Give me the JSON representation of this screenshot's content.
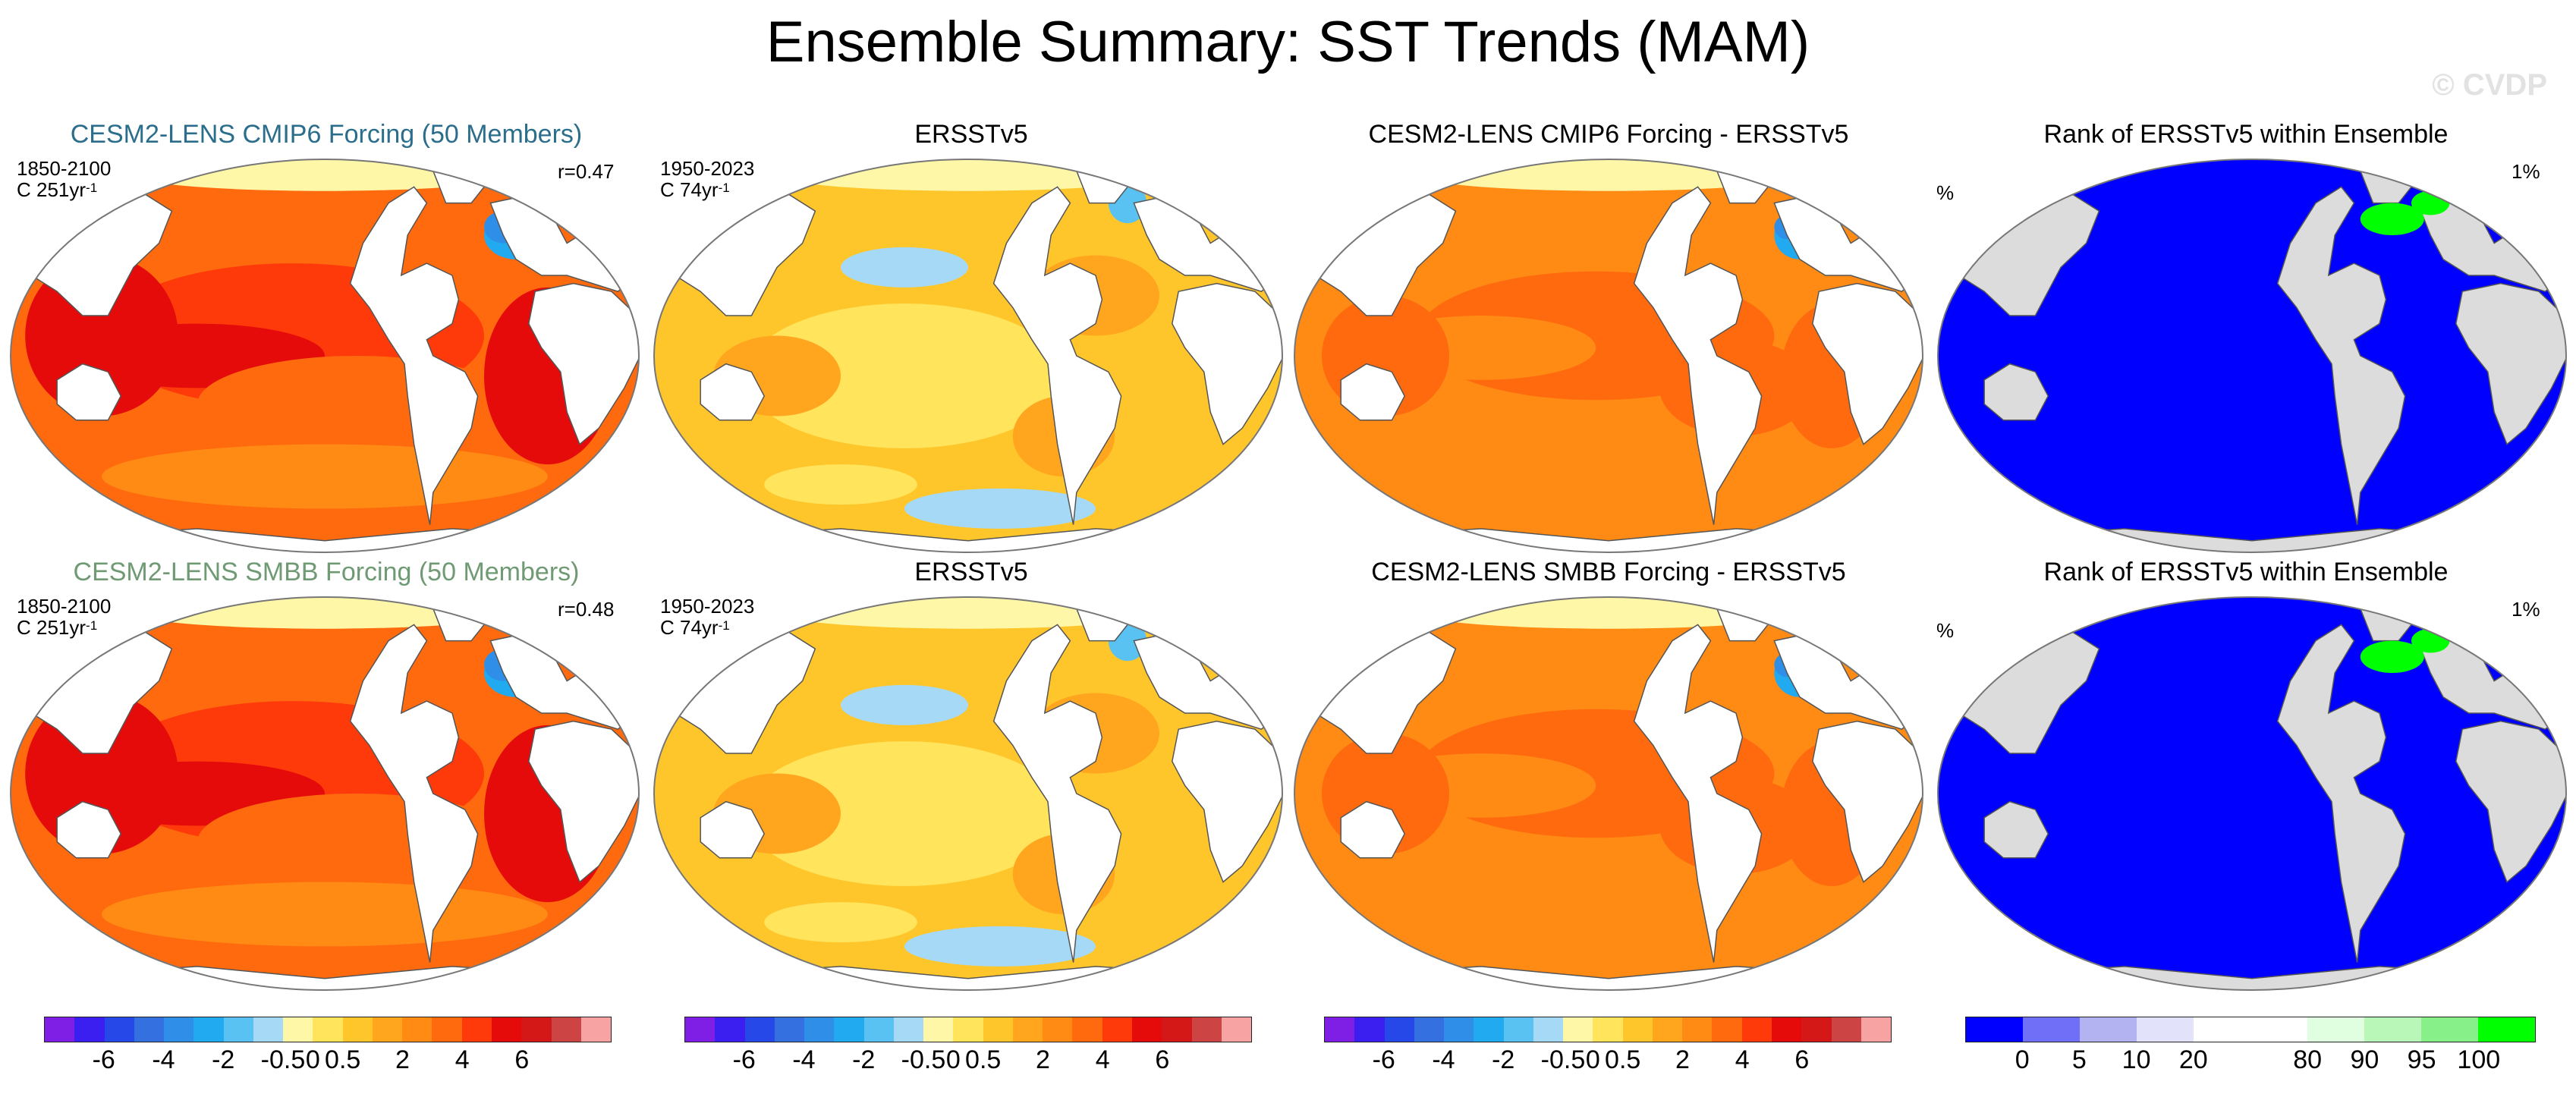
{
  "header": {
    "title": "Ensemble Summary: SST Trends (MAM)",
    "watermark": "© CVDP"
  },
  "rows": [
    {
      "panels": [
        {
          "title": "CESM2-LENS CMIP6 Forcing (50 Members)",
          "title_color": "#2b6e8c",
          "label_left_1": "1850-2100",
          "label_left_2a": "C 251yr",
          "label_left_2b": "-1",
          "label_right": "r=0.47"
        },
        {
          "title": "ERSSTv5",
          "label_left_1": "1950-2023",
          "label_left_2a": "C 74yr",
          "label_left_2b": "-1"
        },
        {
          "title": "CESM2-LENS CMIP6 Forcing - ERSSTv5"
        },
        {
          "title": "Rank of ERSSTv5 within Ensemble",
          "label_left_1": "%",
          "label_right": "1%"
        }
      ]
    },
    {
      "panels": [
        {
          "title": "CESM2-LENS SMBB Forcing (50 Members)",
          "title_color": "#6f9a73",
          "label_left_1": "1850-2100",
          "label_left_2a": "C 251yr",
          "label_left_2b": "-1",
          "label_right": "r=0.48"
        },
        {
          "title": "ERSSTv5",
          "label_left_1": "1950-2023",
          "label_left_2a": "C 74yr",
          "label_left_2b": "-1"
        },
        {
          "title": "CESM2-LENS SMBB Forcing - ERSSTv5"
        },
        {
          "title": "Rank of ERSSTv5 within Ensemble",
          "label_left_1": "%",
          "label_right": "1%"
        }
      ]
    }
  ],
  "chart_data": {
    "type": "heatmap",
    "description_title": "Ensemble Summary: SST Trends (MAM)",
    "trend_colorbar": {
      "colors": [
        "#7f1fe6",
        "#3a1ff0",
        "#2748e8",
        "#3470e0",
        "#2f8fe8",
        "#22aaf0",
        "#59c2f2",
        "#a6d9f5",
        "#fff7a8",
        "#ffe45c",
        "#ffc62c",
        "#ffa51e",
        "#ff8a14",
        "#ff6a0e",
        "#ff3a0a",
        "#e60b0b",
        "#d41818",
        "#cc4444",
        "#f7a3a3"
      ],
      "tick_labels": [
        "-6",
        "-4",
        "-2",
        "-0.5",
        "0",
        "0.5",
        "2",
        "4",
        "6"
      ],
      "tick_boundary_index": [
        2,
        4,
        6,
        8,
        9,
        10,
        12,
        14,
        16
      ]
    },
    "rank_colorbar": {
      "colors": [
        "#0000ff",
        "#6f6ff7",
        "#b3b3f2",
        "#e2e2fa",
        "#ffffff",
        "#ffffff",
        "#e0ffe0",
        "#b8f7b8",
        "#88f088",
        "#00ff00"
      ],
      "tick_labels": [
        "0",
        "5",
        "10",
        "20",
        "80",
        "90",
        "95",
        "100"
      ],
      "tick_boundary_index": [
        1,
        2,
        3,
        4,
        6,
        7,
        8,
        9
      ]
    },
    "panels": [
      {
        "row": 1,
        "col": 1,
        "name": "CESM2-LENS CMIP6 Forcing (50 Members)",
        "period": "1850-2100",
        "units": "C 251yr-1",
        "pattern_correlation": 0.47,
        "dominant_trend_range": [
          2,
          6
        ]
      },
      {
        "row": 1,
        "col": 2,
        "name": "ERSSTv5",
        "period": "1950-2023",
        "units": "C 74yr-1",
        "dominant_trend_range": [
          0,
          2
        ]
      },
      {
        "row": 1,
        "col": 3,
        "name": "CESM2-LENS CMIP6 Forcing - ERSSTv5",
        "dominant_trend_range": [
          2,
          4
        ]
      },
      {
        "row": 1,
        "col": 4,
        "name": "Rank of ERSSTv5 within Ensemble",
        "dominant_rank_range": [
          0,
          5
        ],
        "percent_label": "1%"
      },
      {
        "row": 2,
        "col": 1,
        "name": "CESM2-LENS SMBB Forcing (50 Members)",
        "period": "1850-2100",
        "units": "C 251yr-1",
        "pattern_correlation": 0.48,
        "dominant_trend_range": [
          2,
          6
        ]
      },
      {
        "row": 2,
        "col": 2,
        "name": "ERSSTv5",
        "period": "1950-2023",
        "units": "C 74yr-1",
        "dominant_trend_range": [
          0,
          2
        ]
      },
      {
        "row": 2,
        "col": 3,
        "name": "CESM2-LENS SMBB Forcing - ERSSTv5",
        "dominant_trend_range": [
          2,
          4
        ]
      },
      {
        "row": 2,
        "col": 4,
        "name": "Rank of ERSSTv5 within Ensemble",
        "dominant_rank_range": [
          0,
          5
        ],
        "percent_label": "1%"
      }
    ]
  }
}
